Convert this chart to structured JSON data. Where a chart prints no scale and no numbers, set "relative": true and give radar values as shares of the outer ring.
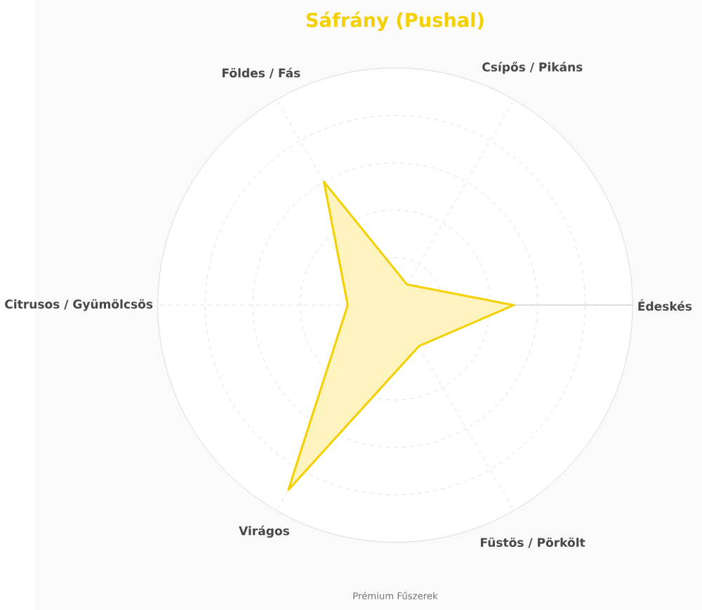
{
  "chart_data": {
    "type": "radar",
    "title": "Sáfrány (Pushal)",
    "categories": [
      "Csípős / Pikáns",
      "Édeskés",
      "Füstös / Pörkölt",
      "Virágos",
      "Citrusos / Gyümölcsös",
      "Földes / Fás"
    ],
    "series": [
      {
        "color": "#f5d000",
        "values": [
          0.1,
          0.5,
          0.2,
          0.9,
          0.2,
          0.6
        ]
      }
    ],
    "relative": true,
    "grid": true,
    "annotations": [
      "Prémium Fűszerek"
    ]
  }
}
